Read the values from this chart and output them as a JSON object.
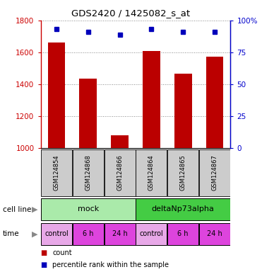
{
  "title": "GDS2420 / 1425082_s_at",
  "samples": [
    "GSM124854",
    "GSM124868",
    "GSM124866",
    "GSM124864",
    "GSM124865",
    "GSM124867"
  ],
  "counts": [
    1660,
    1435,
    1080,
    1610,
    1465,
    1575
  ],
  "percentiles": [
    93,
    91,
    89,
    93,
    91,
    91
  ],
  "ylim_left": [
    1000,
    1800
  ],
  "ylim_right": [
    0,
    100
  ],
  "yticks_left": [
    1000,
    1200,
    1400,
    1600,
    1800
  ],
  "yticks_right": [
    0,
    25,
    50,
    75,
    100
  ],
  "bar_color": "#bb0000",
  "dot_color": "#0000bb",
  "cell_line_colors": [
    "#aaeaaa",
    "#44cc44"
  ],
  "time_colors": [
    "#e8a8e8",
    "#dd44dd",
    "#dd44dd",
    "#e8a8e8",
    "#dd44dd",
    "#dd44dd"
  ],
  "time_labels": [
    "control",
    "6 h",
    "24 h",
    "control",
    "6 h",
    "24 h"
  ],
  "background_color": "#ffffff",
  "grid_color": "#888888",
  "label_color_left": "#cc0000",
  "label_color_right": "#0000cc",
  "sample_box_color": "#cccccc",
  "border_color": "#000000"
}
